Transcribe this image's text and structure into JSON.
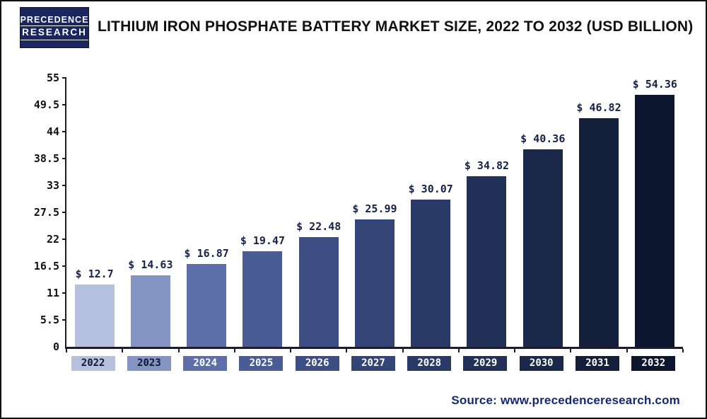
{
  "header": {
    "logo_line1": "PRECEDENCE",
    "logo_line2": "RESEARCH",
    "title": "Lithium Iron Phosphate Battery Market Size, 2022 to 2032 (USD Billion)"
  },
  "chart_data": {
    "type": "bar",
    "title": "Lithium Iron Phosphate Battery Market Size, 2022 to 2032 (USD Billion)",
    "categories": [
      "2022",
      "2023",
      "2024",
      "2025",
      "2026",
      "2027",
      "2028",
      "2029",
      "2030",
      "2031",
      "2032"
    ],
    "values": [
      12.7,
      14.63,
      16.87,
      19.47,
      22.48,
      25.99,
      30.07,
      34.82,
      40.36,
      46.82,
      54.36
    ],
    "data_labels": [
      "$ 12.7",
      "$ 14.63",
      "$ 16.87",
      "$ 19.47",
      "$ 22.48",
      "$ 25.99",
      "$ 30.07",
      "$ 34.82",
      "$ 40.36",
      "$ 46.82",
      "$ 54.36"
    ],
    "xlabel": "",
    "ylabel": "",
    "ylim": [
      0,
      55
    ],
    "yticks": [
      0,
      5.5,
      11,
      16.5,
      22,
      27.5,
      33,
      38.5,
      44,
      49.5,
      55
    ],
    "ytick_labels": [
      "0",
      "5.5",
      "11",
      "16.5",
      "22",
      "27.5",
      "33",
      "38.5",
      "44",
      "49.5",
      "55"
    ],
    "grid": "off",
    "legend": "none",
    "bar_colors": [
      "#b6c0df",
      "#8494c3",
      "#5c6fa9",
      "#4a5c95",
      "#3d4e85",
      "#334576",
      "#2a3a66",
      "#223157",
      "#1a2849",
      "#131f3b",
      "#0c162e"
    ],
    "year_label_text_colors": [
      "#10172e",
      "#10172e",
      "#ffffff",
      "#ffffff",
      "#ffffff",
      "#ffffff",
      "#ffffff",
      "#ffffff",
      "#ffffff",
      "#ffffff",
      "#ffffff"
    ],
    "value_label_color": "#16224a",
    "axis_color": "#1c1c2e"
  },
  "footer": {
    "source": "Source: www.precedenceresearch.com"
  }
}
